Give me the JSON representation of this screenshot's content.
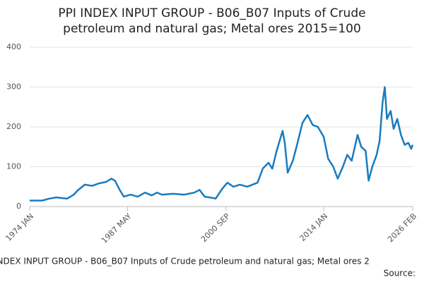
{
  "chart_data": {
    "type": "line",
    "title": [
      "PPI INDEX INPUT GROUP - B06_B07 Inputs of Crude",
      "petroleum and natural gas; Metal ores 2015=100"
    ],
    "footer": "INDEX INPUT GROUP - B06_B07 Inputs of Crude petroleum and natural gas; Metal ores 2",
    "source": "Source:",
    "x": [
      1974.0,
      1975.7,
      1976.7,
      1977.6,
      1979.1,
      1980.0,
      1980.5,
      1981.5,
      1982.5,
      1983.4,
      1984.4,
      1985.1,
      1985.6,
      1986.3,
      1986.8,
      1987.7,
      1988.7,
      1989.7,
      1990.6,
      1991.3,
      1992.0,
      1993.5,
      1995.0,
      1996.4,
      1997.1,
      1997.8,
      1998.8,
      1999.3,
      2000.2,
      2000.9,
      2001.7,
      2002.6,
      2003.6,
      2005.0,
      2005.7,
      2006.5,
      2007.0,
      2007.6,
      2008.4,
      2008.7,
      2009.1,
      2009.8,
      2010.3,
      2011.1,
      2011.8,
      2012.5,
      2013.2,
      2014.0,
      2014.6,
      2015.3,
      2015.9,
      2016.6,
      2017.2,
      2017.8,
      2018.6,
      2019.1,
      2019.7,
      2020.1,
      2020.6,
      2021.2,
      2021.6,
      2022.0,
      2022.3,
      2022.6,
      2023.1,
      2023.5,
      2024.0,
      2024.5,
      2025.0,
      2025.5,
      2025.9,
      2026.1
    ],
    "series": [
      {
        "name": "PPI INDEX INPUT GROUP - B06_B07",
        "color": "#1a7bbf",
        "values": [
          15,
          15,
          20,
          23,
          20,
          30,
          40,
          55,
          52,
          58,
          62,
          70,
          65,
          40,
          25,
          30,
          25,
          35,
          28,
          35,
          30,
          32,
          30,
          35,
          42,
          25,
          22,
          20,
          45,
          60,
          50,
          55,
          50,
          60,
          95,
          110,
          95,
          140,
          190,
          160,
          85,
          115,
          150,
          210,
          230,
          205,
          200,
          175,
          120,
          100,
          70,
          100,
          130,
          115,
          180,
          150,
          140,
          65,
          100,
          130,
          165,
          260,
          300,
          220,
          240,
          195,
          220,
          180,
          155,
          160,
          145,
          155
        ]
      }
    ],
    "xlim": [
      1974.0,
      2026.1
    ],
    "xticks": [
      {
        "value": 1974.0,
        "label": "1974 JAN"
      },
      {
        "value": 1987.3,
        "label": "1987 MAY"
      },
      {
        "value": 2000.7,
        "label": "2000 SEP"
      },
      {
        "value": 2014.0,
        "label": "2014 JAN"
      },
      {
        "value": 2026.1,
        "label": "2026 FEB"
      }
    ],
    "ylim": [
      0,
      400
    ],
    "yticks": [
      0,
      100,
      200,
      300,
      400
    ],
    "grid": true
  }
}
